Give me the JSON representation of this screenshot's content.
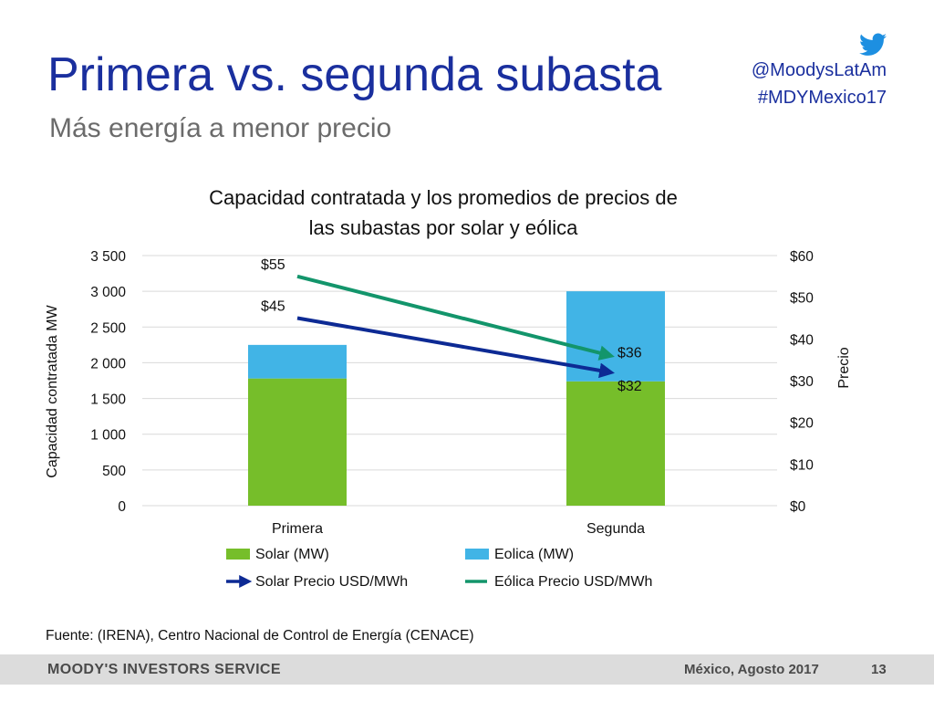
{
  "slide": {
    "title": "Primera vs. segunda subasta",
    "subtitle": "Más energía a menor precio",
    "social_handle": "@MoodysLatAm",
    "hashtag": "#MDYMexico17",
    "source": "Fuente: (IRENA), Centro Nacional de Control de Energía (CENACE)",
    "footer_brand": "MOODY'S INVESTORS SERVICE",
    "footer_date": "México, Agosto 2017",
    "page_number": "13"
  },
  "icons": {
    "social": "twitter-bird-icon"
  },
  "colors": {
    "title": "#1a2f9e",
    "solar_bar": "#76be2a",
    "eolica_bar": "#41b4e6",
    "solar_price": "#0d2a94",
    "eolica_price": "#13956b"
  },
  "chart_data": {
    "type": "bar",
    "stacked": true,
    "title_lines": [
      "Capacidad contratada y los promedios de precios de",
      "las subastas por solar y eólica"
    ],
    "categories": [
      "Primera",
      "Segunda"
    ],
    "ylabel": "Capacidad contratada MW",
    "y2label": "Precio",
    "ylim": [
      0,
      3500
    ],
    "yticks": [
      0,
      500,
      1000,
      1500,
      2000,
      2500,
      3000,
      3500
    ],
    "ytick_labels": [
      "0",
      "500",
      "1 000",
      "1 500",
      "2 000",
      "2 500",
      "3 000",
      "3 500"
    ],
    "y2lim": [
      0,
      60
    ],
    "y2ticks": [
      0,
      10,
      20,
      30,
      40,
      50,
      60
    ],
    "y2tick_labels": [
      "$0",
      "$10",
      "$20",
      "$30",
      "$40",
      "$50",
      "$60"
    ],
    "grid": true,
    "legend_position": "bottom",
    "series": [
      {
        "name": "Solar (MW)",
        "kind": "bar",
        "axis": "left",
        "color": "#76be2a",
        "values": [
          1780,
          1740
        ]
      },
      {
        "name": "Eolica (MW)",
        "kind": "bar",
        "axis": "left",
        "color": "#41b4e6",
        "values": [
          470,
          1260
        ]
      },
      {
        "name": "Solar Precio USD/MWh",
        "kind": "line",
        "axis": "right",
        "color": "#0d2a94",
        "arrow": true,
        "values": [
          45,
          32
        ],
        "labels": [
          "$45",
          "$32"
        ]
      },
      {
        "name": "Eólica Precio USD/MWh",
        "kind": "line",
        "axis": "right",
        "color": "#13956b",
        "arrow": true,
        "values": [
          55,
          36
        ],
        "labels": [
          "$55",
          "$36"
        ]
      }
    ]
  }
}
